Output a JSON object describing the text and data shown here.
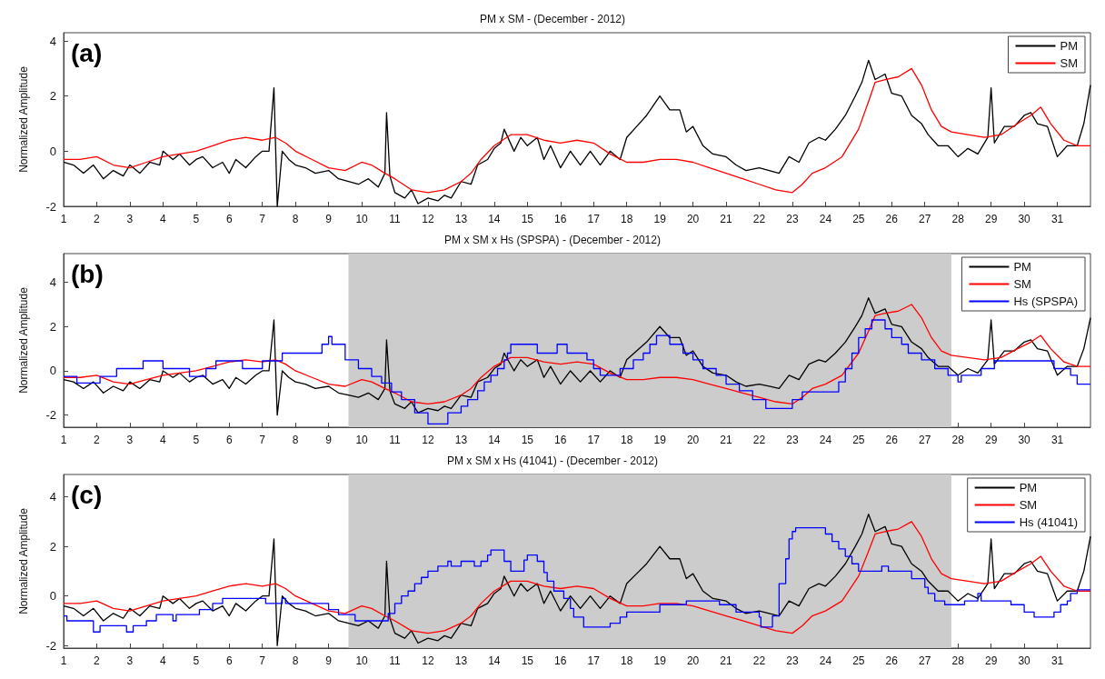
{
  "chart_data": [
    {
      "type": "line",
      "title": "PM x SM - (December - 2012)",
      "ylabel": "Normalized Amplitude",
      "annotations": [
        "(a)"
      ],
      "xlim": [
        1,
        32
      ],
      "ylim": [
        -2,
        4.3
      ],
      "xticks": [
        1,
        2,
        3,
        4,
        5,
        6,
        7,
        8,
        9,
        10,
        11,
        12,
        13,
        14,
        15,
        16,
        17,
        18,
        19,
        20,
        21,
        22,
        23,
        24,
        25,
        26,
        27,
        28,
        29,
        30,
        31
      ],
      "yticks": [
        -2,
        0,
        2,
        4
      ],
      "grid": false,
      "legend": "top right",
      "series": [
        {
          "name": "PM",
          "color": "#000000",
          "x": [
            1.0,
            1.3,
            1.6,
            1.9,
            2.2,
            2.5,
            2.8,
            3.0,
            3.3,
            3.6,
            3.9,
            4.0,
            4.3,
            4.5,
            4.8,
            5.0,
            5.2,
            5.5,
            5.8,
            6.0,
            6.2,
            6.5,
            6.8,
            7.0,
            7.2,
            7.35,
            7.45,
            7.6,
            7.8,
            8.0,
            8.3,
            8.6,
            9.0,
            9.3,
            9.6,
            9.9,
            10.2,
            10.5,
            10.7,
            10.75,
            10.85,
            11.0,
            11.3,
            11.5,
            11.7,
            12.0,
            12.3,
            12.5,
            12.7,
            13.0,
            13.3,
            13.5,
            13.8,
            14.0,
            14.2,
            14.3,
            14.6,
            14.8,
            15.0,
            15.3,
            15.5,
            15.7,
            16.0,
            16.3,
            16.6,
            16.9,
            17.2,
            17.5,
            17.8,
            18.0,
            18.3,
            18.6,
            19.0,
            19.3,
            19.6,
            19.8,
            20.0,
            20.3,
            20.6,
            21.0,
            21.3,
            21.6,
            22.0,
            22.3,
            22.6,
            22.9,
            23.2,
            23.5,
            23.8,
            24.0,
            24.3,
            24.6,
            24.9,
            25.1,
            25.3,
            25.5,
            25.8,
            26.0,
            26.3,
            26.6,
            26.9,
            27.1,
            27.4,
            27.7,
            28.0,
            28.3,
            28.6,
            28.9,
            29.0,
            29.1,
            29.4,
            29.7,
            30.0,
            30.2,
            30.4,
            30.7,
            31.0,
            31.3,
            31.6,
            31.8,
            32.0
          ],
          "values": [
            -0.4,
            -0.5,
            -0.8,
            -0.5,
            -1.0,
            -0.7,
            -0.9,
            -0.5,
            -0.8,
            -0.4,
            -0.5,
            0.0,
            -0.3,
            -0.1,
            -0.5,
            -0.3,
            -0.2,
            -0.6,
            -0.4,
            -0.8,
            -0.3,
            -0.6,
            -0.2,
            0.0,
            0.0,
            2.3,
            -2.0,
            0.0,
            -0.3,
            -0.5,
            -0.6,
            -0.8,
            -0.7,
            -1.0,
            -1.1,
            -1.2,
            -1.0,
            -1.3,
            -0.8,
            1.4,
            -0.9,
            -1.5,
            -1.7,
            -1.4,
            -1.9,
            -1.7,
            -1.8,
            -1.6,
            -1.7,
            -1.1,
            -1.2,
            -0.5,
            -0.3,
            0.1,
            0.3,
            0.8,
            0.0,
            0.5,
            0.2,
            0.5,
            -0.3,
            0.2,
            -0.6,
            0.0,
            -0.5,
            0.0,
            -0.5,
            0.0,
            -0.3,
            0.5,
            0.9,
            1.3,
            2.0,
            1.5,
            1.5,
            0.7,
            0.9,
            0.2,
            -0.1,
            -0.2,
            -0.5,
            -0.7,
            -0.6,
            -0.7,
            -0.8,
            -0.2,
            -0.4,
            0.3,
            0.5,
            0.4,
            0.8,
            1.3,
            2.0,
            2.5,
            3.3,
            2.6,
            2.8,
            2.1,
            2.0,
            1.3,
            1.0,
            0.6,
            0.2,
            0.2,
            -0.2,
            0.1,
            -0.1,
            0.5,
            2.3,
            0.3,
            0.9,
            0.9,
            1.3,
            1.4,
            1.0,
            0.9,
            -0.2,
            0.2,
            0.2,
            1.0,
            2.4
          ]
        },
        {
          "name": "SM",
          "color": "#ff0000",
          "x": [
            1.0,
            1.5,
            2.0,
            2.5,
            3.0,
            3.5,
            4.0,
            4.5,
            5.0,
            5.5,
            6.0,
            6.5,
            7.0,
            7.4,
            7.7,
            8.0,
            8.5,
            9.0,
            9.5,
            10.0,
            10.3,
            10.7,
            11.0,
            11.5,
            12.0,
            12.5,
            13.0,
            13.3,
            13.6,
            14.0,
            14.5,
            15.0,
            15.5,
            16.0,
            16.5,
            17.0,
            17.5,
            18.0,
            18.5,
            19.0,
            19.5,
            20.0,
            20.5,
            21.0,
            21.5,
            22.0,
            22.5,
            23.0,
            23.3,
            23.6,
            24.0,
            24.5,
            25.0,
            25.3,
            25.5,
            25.8,
            26.2,
            26.6,
            26.9,
            27.2,
            27.5,
            27.8,
            28.3,
            28.8,
            29.3,
            29.8,
            30.2,
            30.5,
            30.8,
            31.2,
            31.6,
            32.0
          ],
          "values": [
            -0.3,
            -0.3,
            -0.2,
            -0.5,
            -0.6,
            -0.4,
            -0.2,
            -0.1,
            0.0,
            0.2,
            0.4,
            0.5,
            0.4,
            0.5,
            0.3,
            0.0,
            -0.3,
            -0.6,
            -0.7,
            -0.4,
            -0.5,
            -0.8,
            -1.0,
            -1.4,
            -1.5,
            -1.4,
            -1.1,
            -0.8,
            -0.3,
            0.2,
            0.6,
            0.6,
            0.4,
            0.3,
            0.4,
            0.3,
            -0.1,
            -0.4,
            -0.4,
            -0.3,
            -0.3,
            -0.4,
            -0.6,
            -0.8,
            -1.0,
            -1.2,
            -1.4,
            -1.5,
            -1.2,
            -0.8,
            -0.6,
            -0.2,
            0.8,
            1.8,
            2.5,
            2.6,
            2.7,
            3.0,
            2.4,
            1.5,
            0.9,
            0.7,
            0.6,
            0.5,
            0.6,
            1.0,
            1.3,
            1.6,
            1.0,
            0.4,
            0.2,
            0.2
          ]
        }
      ]
    },
    {
      "type": "line",
      "title": "PM x SM x Hs (SPSPA) - (December - 2012)",
      "ylabel": "Normalized Amplitude",
      "annotations": [
        "(b)"
      ],
      "xlim": [
        1,
        32
      ],
      "ylim": [
        -2.55,
        5.3
      ],
      "xticks": [
        1,
        2,
        3,
        4,
        5,
        6,
        7,
        8,
        9,
        10,
        11,
        12,
        13,
        14,
        15,
        16,
        17,
        18,
        19,
        20,
        21,
        22,
        23,
        24,
        25,
        26,
        27,
        28,
        29,
        30,
        31
      ],
      "yticks": [
        -2,
        0,
        2,
        4
      ],
      "grid": false,
      "legend": "top right",
      "bands": [
        {
          "axis": "x",
          "from": 9.6,
          "to": 27.8,
          "color": "#cccccc"
        }
      ],
      "series": [
        {
          "name": "PM",
          "color": "#000000",
          "x": [
            1.0,
            1.3,
            1.6,
            1.9,
            2.2,
            2.5,
            2.8,
            3.0,
            3.3,
            3.6,
            3.9,
            4.0,
            4.3,
            4.5,
            4.8,
            5.0,
            5.2,
            5.5,
            5.8,
            6.0,
            6.2,
            6.5,
            6.8,
            7.0,
            7.2,
            7.35,
            7.45,
            7.6,
            7.8,
            8.0,
            8.3,
            8.6,
            9.0,
            9.3,
            9.6,
            9.9,
            10.2,
            10.5,
            10.7,
            10.75,
            10.85,
            11.0,
            11.3,
            11.5,
            11.7,
            12.0,
            12.3,
            12.5,
            12.7,
            13.0,
            13.3,
            13.5,
            13.8,
            14.0,
            14.2,
            14.3,
            14.6,
            14.8,
            15.0,
            15.3,
            15.5,
            15.7,
            16.0,
            16.3,
            16.6,
            16.9,
            17.2,
            17.5,
            17.8,
            18.0,
            18.3,
            18.6,
            19.0,
            19.3,
            19.6,
            19.8,
            20.0,
            20.3,
            20.6,
            21.0,
            21.3,
            21.6,
            22.0,
            22.3,
            22.6,
            22.9,
            23.2,
            23.5,
            23.8,
            24.0,
            24.3,
            24.6,
            24.9,
            25.1,
            25.3,
            25.5,
            25.8,
            26.0,
            26.3,
            26.6,
            26.9,
            27.1,
            27.4,
            27.7,
            28.0,
            28.3,
            28.6,
            28.9,
            29.0,
            29.1,
            29.4,
            29.7,
            30.0,
            30.2,
            30.4,
            30.7,
            31.0,
            31.3,
            31.6,
            31.8,
            32.0
          ],
          "values": [
            -0.4,
            -0.5,
            -0.8,
            -0.5,
            -1.0,
            -0.7,
            -0.9,
            -0.5,
            -0.8,
            -0.4,
            -0.5,
            0.0,
            -0.3,
            -0.1,
            -0.5,
            -0.3,
            -0.2,
            -0.6,
            -0.4,
            -0.8,
            -0.3,
            -0.6,
            -0.2,
            0.0,
            0.0,
            2.3,
            -2.0,
            0.0,
            -0.3,
            -0.5,
            -0.6,
            -0.8,
            -0.7,
            -1.0,
            -1.1,
            -1.2,
            -1.0,
            -1.3,
            -0.8,
            1.4,
            -0.9,
            -1.5,
            -1.7,
            -1.4,
            -1.9,
            -1.7,
            -1.8,
            -1.6,
            -1.7,
            -1.1,
            -1.2,
            -0.5,
            -0.3,
            0.1,
            0.3,
            0.8,
            0.0,
            0.5,
            0.2,
            0.5,
            -0.3,
            0.2,
            -0.6,
            0.0,
            -0.5,
            0.0,
            -0.5,
            0.0,
            -0.3,
            0.5,
            0.9,
            1.3,
            2.0,
            1.5,
            1.5,
            0.7,
            0.9,
            0.2,
            -0.1,
            -0.2,
            -0.5,
            -0.7,
            -0.6,
            -0.7,
            -0.8,
            -0.2,
            -0.4,
            0.3,
            0.5,
            0.4,
            0.8,
            1.3,
            2.0,
            2.5,
            3.3,
            2.6,
            2.8,
            2.1,
            2.0,
            1.3,
            1.0,
            0.6,
            0.2,
            0.2,
            -0.2,
            0.1,
            -0.1,
            0.5,
            2.3,
            0.3,
            0.9,
            0.9,
            1.3,
            1.4,
            1.0,
            0.9,
            -0.2,
            0.2,
            0.2,
            1.0,
            2.4
          ]
        },
        {
          "name": "SM",
          "color": "#ff0000",
          "x": [
            1.0,
            1.5,
            2.0,
            2.5,
            3.0,
            3.5,
            4.0,
            4.5,
            5.0,
            5.5,
            6.0,
            6.5,
            7.0,
            7.4,
            7.7,
            8.0,
            8.5,
            9.0,
            9.5,
            10.0,
            10.3,
            10.7,
            11.0,
            11.5,
            12.0,
            12.5,
            13.0,
            13.3,
            13.6,
            14.0,
            14.5,
            15.0,
            15.5,
            16.0,
            16.5,
            17.0,
            17.5,
            18.0,
            18.5,
            19.0,
            19.5,
            20.0,
            20.5,
            21.0,
            21.5,
            22.0,
            22.5,
            23.0,
            23.3,
            23.6,
            24.0,
            24.5,
            25.0,
            25.3,
            25.5,
            25.8,
            26.2,
            26.6,
            26.9,
            27.2,
            27.5,
            27.8,
            28.3,
            28.8,
            29.3,
            29.8,
            30.2,
            30.5,
            30.8,
            31.2,
            31.6,
            32.0
          ],
          "values": [
            -0.3,
            -0.3,
            -0.2,
            -0.5,
            -0.6,
            -0.4,
            -0.2,
            -0.1,
            0.0,
            0.2,
            0.4,
            0.5,
            0.4,
            0.5,
            0.3,
            0.0,
            -0.3,
            -0.6,
            -0.7,
            -0.4,
            -0.5,
            -0.8,
            -1.0,
            -1.4,
            -1.5,
            -1.4,
            -1.1,
            -0.8,
            -0.3,
            0.2,
            0.6,
            0.6,
            0.4,
            0.3,
            0.4,
            0.3,
            -0.1,
            -0.4,
            -0.4,
            -0.3,
            -0.3,
            -0.4,
            -0.6,
            -0.8,
            -1.0,
            -1.2,
            -1.4,
            -1.5,
            -1.2,
            -0.8,
            -0.6,
            -0.2,
            0.8,
            1.8,
            2.5,
            2.6,
            2.7,
            3.0,
            2.4,
            1.5,
            0.9,
            0.7,
            0.6,
            0.5,
            0.6,
            1.0,
            1.3,
            1.6,
            1.0,
            0.4,
            0.2,
            0.2
          ]
        },
        {
          "name": "Hs (SPSPA)",
          "color": "#0000ff",
          "type": "step",
          "x": [
            1.0,
            1.4,
            2.1,
            2.6,
            3.4,
            4.0,
            4.8,
            5.3,
            5.6,
            6.4,
            7.0,
            7.6,
            8.8,
            9.0,
            9.1,
            9.5,
            9.9,
            10.3,
            10.6,
            10.9,
            11.2,
            11.6,
            12.0,
            12.6,
            13.0,
            13.2,
            13.5,
            13.7,
            13.9,
            14.1,
            14.3,
            14.4,
            14.5,
            15.3,
            15.9,
            16.2,
            16.8,
            17.0,
            17.2,
            17.8,
            18.2,
            18.5,
            18.7,
            18.9,
            19.3,
            19.7,
            20.0,
            20.3,
            20.7,
            21.0,
            21.4,
            21.8,
            22.2,
            23.0,
            23.3,
            24.4,
            24.6,
            24.8,
            25.0,
            25.2,
            25.4,
            25.8,
            26.0,
            26.3,
            26.5,
            26.9,
            27.3,
            27.7,
            28.0,
            28.1,
            28.7,
            29.1,
            30.9,
            31.4,
            31.6,
            32.0
          ],
          "values": [
            -0.25,
            -0.55,
            -0.25,
            0.1,
            0.45,
            0.1,
            -0.25,
            0.1,
            0.45,
            0.1,
            0.45,
            0.8,
            1.2,
            1.55,
            1.2,
            0.5,
            0.1,
            -0.25,
            -0.55,
            -0.95,
            -1.3,
            -1.9,
            -2.4,
            -1.9,
            -1.6,
            -1.3,
            -0.9,
            -0.5,
            -0.2,
            0.1,
            0.5,
            0.8,
            1.2,
            0.8,
            1.2,
            0.8,
            0.5,
            0.1,
            -0.2,
            0.1,
            0.5,
            0.8,
            1.2,
            1.6,
            1.2,
            0.8,
            0.5,
            0.1,
            -0.2,
            -0.6,
            -0.9,
            -1.3,
            -1.7,
            -1.3,
            -0.95,
            -0.5,
            0.1,
            0.8,
            1.5,
            1.9,
            2.3,
            1.9,
            1.5,
            1.2,
            0.8,
            0.5,
            0.1,
            -0.2,
            -0.5,
            -0.2,
            0.1,
            0.45,
            0.1,
            -0.2,
            -0.6,
            -0.6
          ]
        }
      ]
    },
    {
      "type": "line",
      "title": "PM x SM x Hs (41041) - (December - 2012)",
      "ylabel": "Normalized Amplitude",
      "annotations": [
        "(c)"
      ],
      "xlim": [
        1,
        32
      ],
      "ylim": [
        -2.1,
        4.9
      ],
      "xticks": [
        1,
        2,
        3,
        4,
        5,
        6,
        7,
        8,
        9,
        10,
        11,
        12,
        13,
        14,
        15,
        16,
        17,
        18,
        19,
        20,
        21,
        22,
        23,
        24,
        25,
        26,
        27,
        28,
        29,
        30,
        31
      ],
      "yticks": [
        -2,
        0,
        2,
        4
      ],
      "grid": false,
      "legend": "top right",
      "bands": [
        {
          "axis": "x",
          "from": 9.6,
          "to": 27.8,
          "color": "#cccccc"
        }
      ],
      "series": [
        {
          "name": "PM",
          "color": "#000000",
          "x": [
            1.0,
            1.3,
            1.6,
            1.9,
            2.2,
            2.5,
            2.8,
            3.0,
            3.3,
            3.6,
            3.9,
            4.0,
            4.3,
            4.5,
            4.8,
            5.0,
            5.2,
            5.5,
            5.8,
            6.0,
            6.2,
            6.5,
            6.8,
            7.0,
            7.2,
            7.35,
            7.45,
            7.6,
            7.8,
            8.0,
            8.3,
            8.6,
            9.0,
            9.3,
            9.6,
            9.9,
            10.2,
            10.5,
            10.7,
            10.75,
            10.85,
            11.0,
            11.3,
            11.5,
            11.7,
            12.0,
            12.3,
            12.5,
            12.7,
            13.0,
            13.3,
            13.5,
            13.8,
            14.0,
            14.2,
            14.3,
            14.6,
            14.8,
            15.0,
            15.3,
            15.5,
            15.7,
            16.0,
            16.3,
            16.6,
            16.9,
            17.2,
            17.5,
            17.8,
            18.0,
            18.3,
            18.6,
            19.0,
            19.3,
            19.6,
            19.8,
            20.0,
            20.3,
            20.6,
            21.0,
            21.3,
            21.6,
            22.0,
            22.3,
            22.6,
            22.9,
            23.2,
            23.5,
            23.8,
            24.0,
            24.3,
            24.6,
            24.9,
            25.1,
            25.3,
            25.5,
            25.8,
            26.0,
            26.3,
            26.6,
            26.9,
            27.1,
            27.4,
            27.7,
            28.0,
            28.3,
            28.6,
            28.9,
            29.0,
            29.1,
            29.4,
            29.7,
            30.0,
            30.2,
            30.4,
            30.7,
            31.0,
            31.3,
            31.6,
            31.8,
            32.0
          ],
          "values": [
            -0.4,
            -0.5,
            -0.8,
            -0.5,
            -1.0,
            -0.7,
            -0.9,
            -0.5,
            -0.8,
            -0.4,
            -0.5,
            0.0,
            -0.3,
            -0.1,
            -0.5,
            -0.3,
            -0.2,
            -0.6,
            -0.4,
            -0.8,
            -0.3,
            -0.6,
            -0.2,
            0.0,
            0.0,
            2.3,
            -2.0,
            0.0,
            -0.3,
            -0.5,
            -0.6,
            -0.8,
            -0.7,
            -1.0,
            -1.1,
            -1.2,
            -1.0,
            -1.3,
            -0.8,
            1.4,
            -0.9,
            -1.5,
            -1.7,
            -1.4,
            -1.9,
            -1.7,
            -1.8,
            -1.6,
            -1.7,
            -1.1,
            -1.2,
            -0.5,
            -0.3,
            0.1,
            0.3,
            0.8,
            0.0,
            0.5,
            0.2,
            0.5,
            -0.3,
            0.2,
            -0.6,
            0.0,
            -0.5,
            0.0,
            -0.5,
            0.0,
            -0.3,
            0.5,
            0.9,
            1.3,
            2.0,
            1.5,
            1.5,
            0.7,
            0.9,
            0.2,
            -0.1,
            -0.2,
            -0.5,
            -0.7,
            -0.6,
            -0.7,
            -0.8,
            -0.2,
            -0.4,
            0.3,
            0.5,
            0.4,
            0.8,
            1.3,
            2.0,
            2.5,
            3.3,
            2.6,
            2.8,
            2.1,
            2.0,
            1.3,
            1.0,
            0.6,
            0.2,
            0.2,
            -0.2,
            0.1,
            -0.1,
            0.5,
            2.3,
            0.3,
            0.9,
            0.9,
            1.3,
            1.4,
            1.0,
            0.9,
            -0.2,
            0.2,
            0.2,
            1.0,
            2.4
          ]
        },
        {
          "name": "SM",
          "color": "#ff0000",
          "x": [
            1.0,
            1.5,
            2.0,
            2.5,
            3.0,
            3.5,
            4.0,
            4.5,
            5.0,
            5.5,
            6.0,
            6.5,
            7.0,
            7.4,
            7.7,
            8.0,
            8.5,
            9.0,
            9.5,
            10.0,
            10.3,
            10.7,
            11.0,
            11.5,
            12.0,
            12.5,
            13.0,
            13.3,
            13.6,
            14.0,
            14.5,
            15.0,
            15.5,
            16.0,
            16.5,
            17.0,
            17.5,
            18.0,
            18.5,
            19.0,
            19.5,
            20.0,
            20.5,
            21.0,
            21.5,
            22.0,
            22.5,
            23.0,
            23.3,
            23.6,
            24.0,
            24.5,
            25.0,
            25.3,
            25.5,
            25.8,
            26.2,
            26.6,
            26.9,
            27.2,
            27.5,
            27.8,
            28.3,
            28.8,
            29.3,
            29.8,
            30.2,
            30.5,
            30.8,
            31.2,
            31.6,
            32.0
          ],
          "values": [
            -0.3,
            -0.3,
            -0.2,
            -0.5,
            -0.6,
            -0.4,
            -0.2,
            -0.1,
            0.0,
            0.2,
            0.4,
            0.5,
            0.4,
            0.5,
            0.3,
            0.0,
            -0.3,
            -0.6,
            -0.7,
            -0.4,
            -0.5,
            -0.8,
            -1.0,
            -1.4,
            -1.5,
            -1.4,
            -1.1,
            -0.8,
            -0.3,
            0.2,
            0.6,
            0.6,
            0.4,
            0.3,
            0.4,
            0.3,
            -0.1,
            -0.4,
            -0.4,
            -0.3,
            -0.3,
            -0.4,
            -0.6,
            -0.8,
            -1.0,
            -1.2,
            -1.4,
            -1.5,
            -1.2,
            -0.8,
            -0.6,
            -0.2,
            0.8,
            1.8,
            2.5,
            2.6,
            2.7,
            3.0,
            2.4,
            1.5,
            0.9,
            0.7,
            0.6,
            0.5,
            0.6,
            1.0,
            1.3,
            1.6,
            1.0,
            0.4,
            0.2,
            0.2
          ]
        },
        {
          "name": "Hs (41041)",
          "color": "#0000ff",
          "type": "step",
          "x": [
            1.0,
            1.1,
            1.9,
            2.1,
            2.9,
            3.1,
            3.5,
            3.8,
            4.3,
            4.4,
            5.1,
            5.5,
            5.8,
            7.1,
            7.6,
            7.7,
            9.0,
            9.3,
            9.8,
            10.8,
            11.0,
            11.2,
            11.4,
            11.6,
            11.8,
            12.0,
            12.3,
            12.6,
            12.7,
            13.0,
            13.4,
            13.6,
            13.8,
            13.9,
            14.3,
            14.5,
            14.9,
            15.0,
            15.3,
            15.5,
            15.6,
            15.8,
            16.1,
            16.3,
            16.4,
            16.7,
            17.5,
            17.8,
            18.0,
            19.0,
            19.8,
            20.8,
            21.3,
            22.0,
            22.05,
            22.4,
            22.6,
            22.8,
            22.9,
            23.0,
            23.1,
            24.0,
            24.2,
            24.4,
            24.6,
            24.8,
            25.0,
            25.7,
            25.9,
            26.6,
            27.0,
            27.1,
            27.3,
            27.6,
            28.2,
            28.6,
            28.7,
            29.6,
            30.0,
            30.3,
            30.9,
            31.1,
            31.3,
            31.4,
            31.6,
            32.0
          ],
          "values": [
            -0.8,
            -1.0,
            -1.45,
            -1.2,
            -1.45,
            -1.2,
            -1.0,
            -0.75,
            -1.0,
            -0.75,
            -0.55,
            -0.3,
            -0.1,
            -0.3,
            -0.1,
            -0.3,
            -0.55,
            -0.75,
            -1.0,
            -0.7,
            -0.3,
            0.0,
            0.2,
            0.5,
            0.75,
            1.0,
            1.2,
            1.4,
            1.2,
            1.4,
            1.2,
            1.4,
            1.65,
            1.85,
            1.4,
            1.0,
            1.45,
            1.65,
            1.4,
            0.95,
            0.6,
            0.2,
            -0.1,
            -0.5,
            -0.85,
            -1.25,
            -1.1,
            -0.85,
            -0.65,
            -0.35,
            -0.2,
            -0.35,
            -0.65,
            -0.85,
            -1.25,
            -0.8,
            0.5,
            1.5,
            2.3,
            2.6,
            2.75,
            2.5,
            2.2,
            1.9,
            1.6,
            1.3,
            1.0,
            1.2,
            1.0,
            0.7,
            0.35,
            0.1,
            -0.2,
            -0.35,
            -0.2,
            0.1,
            -0.2,
            -0.35,
            -0.65,
            -0.85,
            -0.65,
            -0.35,
            -0.2,
            0.1,
            0.25,
            0.25
          ]
        }
      ]
    }
  ]
}
